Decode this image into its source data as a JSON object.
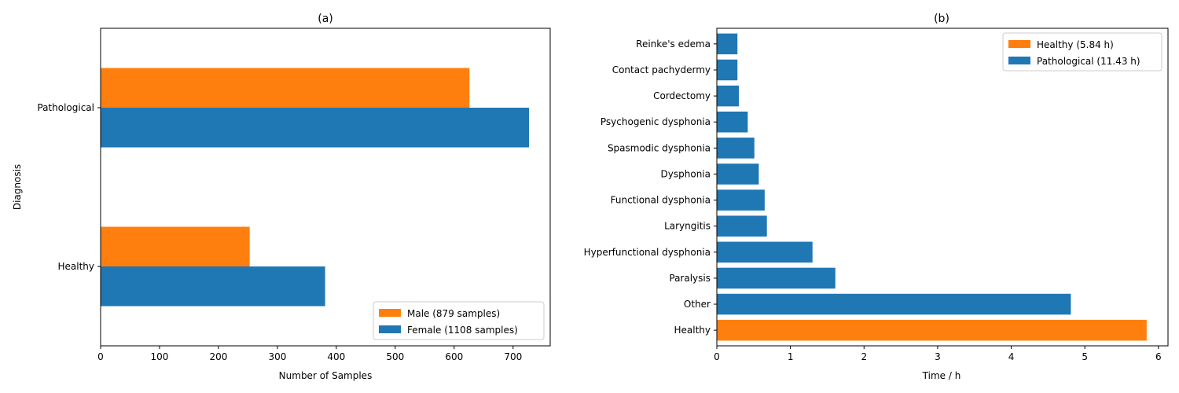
{
  "colors": {
    "orange": "#ff7f0e",
    "blue": "#1f77b4"
  },
  "chart_data": [
    {
      "type": "bar",
      "orientation": "horizontal",
      "title": "(a)",
      "xlabel": "Number of Samples",
      "ylabel": "Diagnosis",
      "categories": [
        "Healthy",
        "Pathological"
      ],
      "series": [
        {
          "name": "Male (879 samples)",
          "color": "#ff7f0e",
          "values": [
            253,
            626
          ]
        },
        {
          "name": "Female (1108 samples)",
          "color": "#1f77b4",
          "values": [
            381,
            727
          ]
        }
      ],
      "xlim": [
        0,
        763
      ],
      "xticks": [
        0,
        100,
        200,
        300,
        400,
        500,
        600,
        700
      ],
      "legend_position": "lower-right",
      "grid": false
    },
    {
      "type": "bar",
      "orientation": "horizontal",
      "title": "(b)",
      "xlabel": "Time / h",
      "ylabel": "",
      "categories": [
        "Healthy",
        "Other",
        "Paralysis",
        "Hyperfunctional dysphonia",
        "Laryngitis",
        "Functional dysphonia",
        "Dysphonia",
        "Spasmodic dysphonia",
        "Psychogenic dysphonia",
        "Cordectomy",
        "Contact pachydermy",
        "Reinke's edema"
      ],
      "values": [
        5.84,
        4.81,
        1.61,
        1.3,
        0.68,
        0.65,
        0.57,
        0.51,
        0.42,
        0.3,
        0.28,
        0.28
      ],
      "bar_colors": [
        "#ff7f0e",
        "#1f77b4",
        "#1f77b4",
        "#1f77b4",
        "#1f77b4",
        "#1f77b4",
        "#1f77b4",
        "#1f77b4",
        "#1f77b4",
        "#1f77b4",
        "#1f77b4",
        "#1f77b4"
      ],
      "series": [
        {
          "name": "Healthy (5.84 h)",
          "color": "#ff7f0e"
        },
        {
          "name": "Pathological (11.43 h)",
          "color": "#1f77b4"
        }
      ],
      "xlim": [
        0,
        6.13
      ],
      "xticks": [
        0,
        1,
        2,
        3,
        4,
        5,
        6
      ],
      "legend_position": "upper-right",
      "grid": false
    }
  ]
}
